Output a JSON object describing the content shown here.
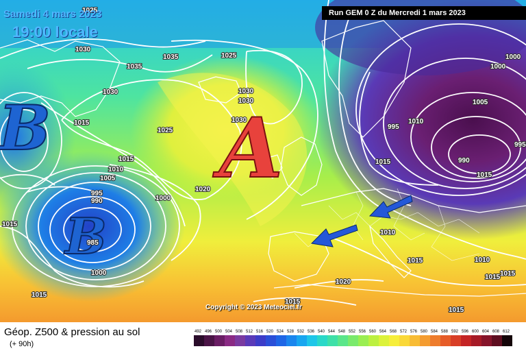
{
  "header": {
    "run": "Run GEM 0 Z du Mercredi 1 mars 2023",
    "date": "Samedi 4 mars 2023",
    "time": "19:00 locale"
  },
  "centers": [
    {
      "letter": "B",
      "kind": "low"
    },
    {
      "letter": "B",
      "kind": "low"
    },
    {
      "letter": "A",
      "kind": "high"
    }
  ],
  "isobar_labels": [
    "1025",
    "1030",
    "1035",
    "1030",
    "1035",
    "1025",
    "1030",
    "1030",
    "1030",
    "1015",
    "1025",
    "1010",
    "1005",
    "1015",
    "1020",
    "995",
    "990",
    "985",
    "1000",
    "1015",
    "1000",
    "1000",
    "1000",
    "1005",
    "1010",
    "995",
    "990",
    "995",
    "1015",
    "1015",
    "1010",
    "1015",
    "1010",
    "1015",
    "1015",
    "1020",
    "1015",
    "1015",
    "1015"
  ],
  "copyright": "Copyright © 2023 Meteociel.fr",
  "legend": {
    "title": "Géop. Z500 & pression au sol",
    "subtitle": "(+ 90h)",
    "scale_values": [
      "492",
      "496",
      "500",
      "504",
      "508",
      "512",
      "516",
      "520",
      "524",
      "528",
      "532",
      "536",
      "540",
      "544",
      "548",
      "552",
      "556",
      "560",
      "564",
      "568",
      "572",
      "576",
      "580",
      "584",
      "588",
      "592",
      "596",
      "600",
      "604",
      "608",
      "612"
    ],
    "scale_colors": [
      "#2a0c2a",
      "#4a1446",
      "#6a1d64",
      "#8a2a84",
      "#7a3aa0",
      "#5a3ab8",
      "#3c3cc8",
      "#2a4fd8",
      "#1e66e6",
      "#1a86ee",
      "#18a6f0",
      "#1ec6e8",
      "#2ad8c8",
      "#3ee0a8",
      "#5ae68a",
      "#7aea6c",
      "#9aee52",
      "#bcf040",
      "#dcf23a",
      "#f6ee3a",
      "#fad838",
      "#f8bc34",
      "#f49c30",
      "#ee7c2c",
      "#e65c28",
      "#d83e26",
      "#c42424",
      "#a61a26",
      "#86142a",
      "#5e0e20",
      "#140408"
    ]
  },
  "colors": {
    "high_letter": "#e8423c",
    "low_letter": "#1e64d2",
    "arrow": "#2458d8"
  }
}
